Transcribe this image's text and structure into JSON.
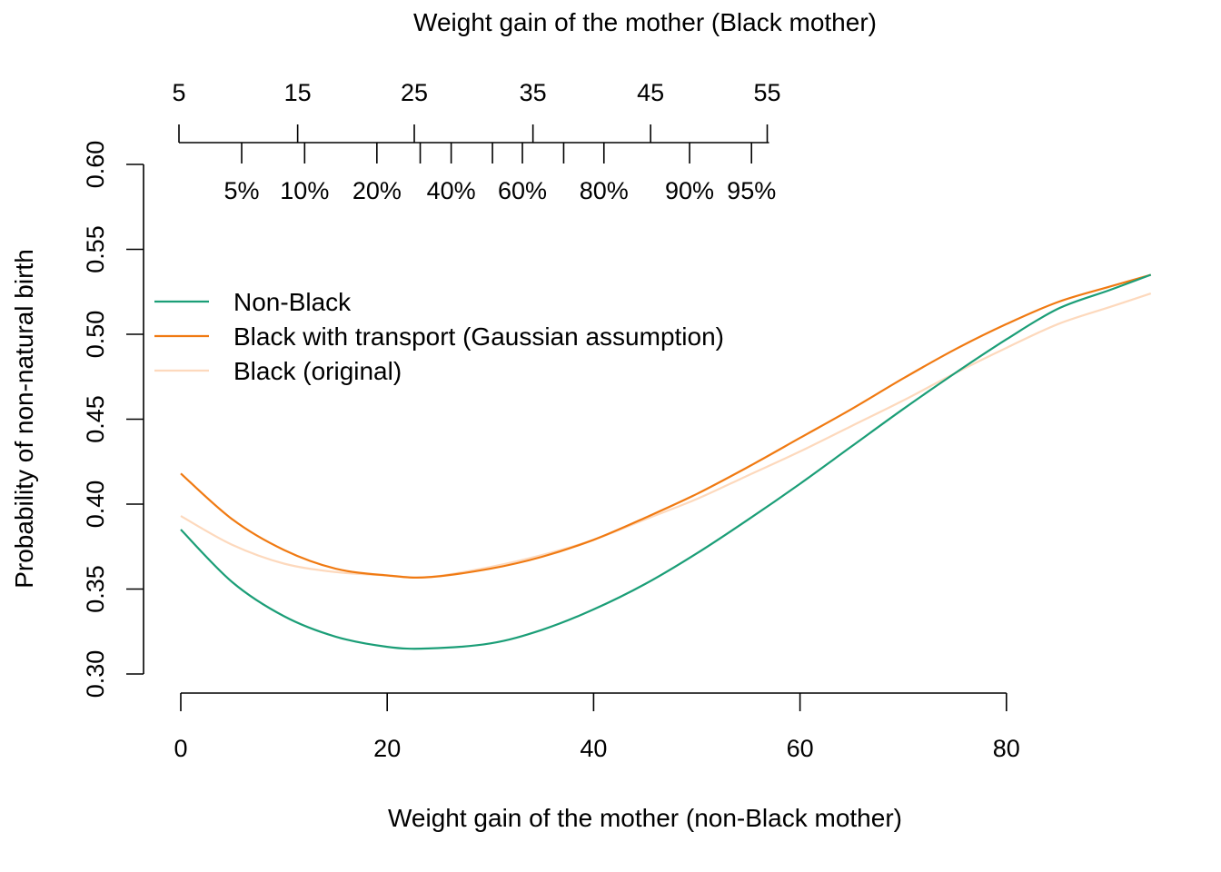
{
  "chart_data": {
    "type": "line",
    "title": "",
    "xlabel": "Weight gain of the mother (non-Black mother)",
    "ylabel": "Probability of non-natural birth",
    "xlim": [
      0,
      94
    ],
    "ylim": [
      0.3,
      0.6
    ],
    "x_ticks": [
      0,
      20,
      40,
      60,
      80
    ],
    "y_ticks": [
      "0.30",
      "0.35",
      "0.40",
      "0.45",
      "0.50",
      "0.55",
      "0.60"
    ],
    "top_axis": {
      "label": "Weight gain of the mother (Black mother)",
      "ticks": [
        {
          "label": "5",
          "x": 0
        },
        {
          "label": "15",
          "x": 11.5
        },
        {
          "label": "25",
          "x": 22.8
        },
        {
          "label": "35",
          "x": 34.3
        },
        {
          "label": "45",
          "x": 45.7
        },
        {
          "label": "55",
          "x": 57.0
        }
      ],
      "quantiles": [
        {
          "label": "5%",
          "x": 5.9
        },
        {
          "label": "10%",
          "x": 12.0
        },
        {
          "label": "20%",
          "x": 19.0
        },
        {
          "label": "",
          "x": 23.2
        },
        {
          "label": "40%",
          "x": 26.2
        },
        {
          "label": "",
          "x": 30.2
        },
        {
          "label": "60%",
          "x": 33.1
        },
        {
          "label": "",
          "x": 37.1
        },
        {
          "label": "80%",
          "x": 41.0
        },
        {
          "label": "90%",
          "x": 49.3
        },
        {
          "label": "95%",
          "x": 55.3
        }
      ]
    },
    "legend_position": "top-left",
    "series": [
      {
        "name": "Non-Black",
        "color": "#1b9e77",
        "x": [
          0,
          5,
          10,
          15,
          20,
          24,
          30,
          35,
          40,
          45,
          50,
          55,
          60,
          65,
          70,
          75,
          80,
          85,
          90,
          94
        ],
        "y": [
          0.385,
          0.354,
          0.334,
          0.322,
          0.316,
          0.315,
          0.318,
          0.326,
          0.338,
          0.353,
          0.371,
          0.391,
          0.412,
          0.434,
          0.456,
          0.477,
          0.497,
          0.515,
          0.526,
          0.535
        ]
      },
      {
        "name": "Black with transport (Gaussian assumption)",
        "color": "#f07a12",
        "x": [
          0,
          5,
          10,
          15,
          20,
          24,
          30,
          35,
          40,
          45,
          50,
          55,
          60,
          65,
          70,
          75,
          80,
          85,
          90,
          94
        ],
        "y": [
          0.418,
          0.391,
          0.373,
          0.362,
          0.358,
          0.357,
          0.362,
          0.369,
          0.379,
          0.392,
          0.406,
          0.422,
          0.439,
          0.456,
          0.474,
          0.491,
          0.506,
          0.519,
          0.528,
          0.535
        ]
      },
      {
        "name": "Black (original)",
        "color": "#fdd9bd",
        "x": [
          0,
          5,
          10,
          15,
          20,
          24,
          30,
          35,
          40,
          45,
          50,
          55,
          60,
          65,
          70,
          75,
          80,
          85,
          90,
          94
        ],
        "y": [
          0.393,
          0.376,
          0.365,
          0.36,
          0.358,
          0.357,
          0.363,
          0.37,
          0.379,
          0.391,
          0.403,
          0.417,
          0.431,
          0.446,
          0.461,
          0.477,
          0.492,
          0.506,
          0.516,
          0.524
        ]
      }
    ]
  }
}
